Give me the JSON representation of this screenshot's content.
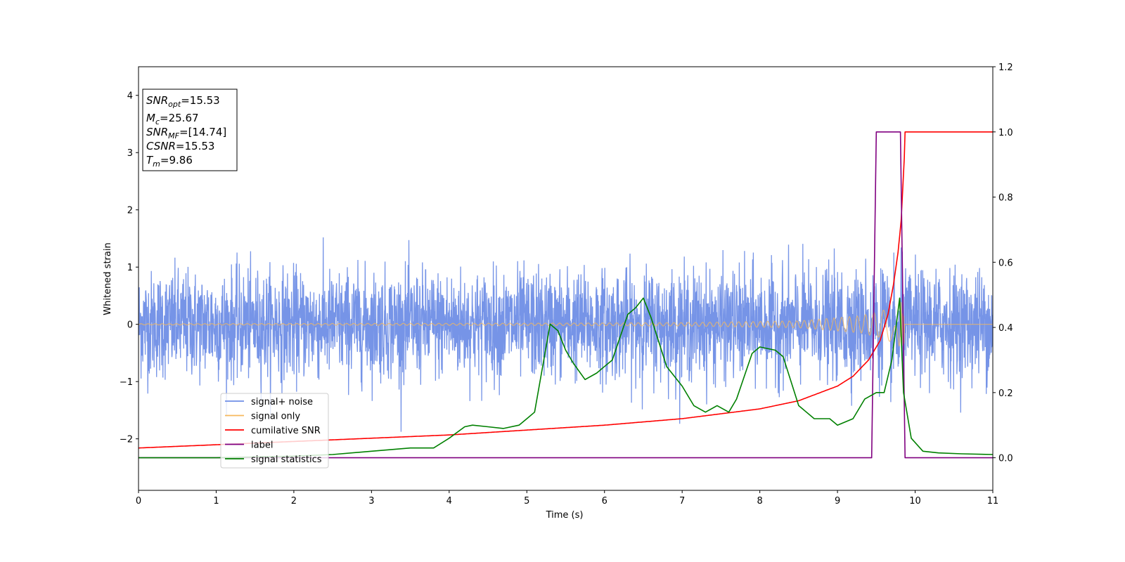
{
  "chart_data": {
    "type": "line",
    "xlabel": "Time (s)",
    "ylabel": "Whitened strain",
    "xlim": [
      0,
      11
    ],
    "ylim": [
      -2.9,
      4.5
    ],
    "y2lim": [
      -0.1,
      1.2
    ],
    "xticks": [
      "0",
      "1",
      "2",
      "3",
      "4",
      "5",
      "6",
      "7",
      "8",
      "9",
      "10",
      "11"
    ],
    "yticks": [
      "−2",
      "−1",
      "0",
      "1",
      "2",
      "3",
      "4"
    ],
    "y2ticks": [
      "0.0",
      "0.2",
      "0.4",
      "0.6",
      "0.8",
      "1.0",
      "1.2"
    ],
    "legend_position": "lower-left",
    "annotation": {
      "lines": [
        {
          "base": "SNR",
          "sub": "opt",
          "value": "=15.53"
        },
        {
          "base": "M",
          "sub": "c",
          "value": "=25.67"
        },
        {
          "base": "SNR",
          "sub": "MF",
          "value": "=[14.74]"
        },
        {
          "base": "CSNR",
          "sub": "",
          "value": "=15.53"
        },
        {
          "base": "T",
          "sub": "m",
          "value": "=9.86"
        }
      ]
    },
    "series": [
      {
        "name": "signal+ noise",
        "color": "#6f8ee6",
        "axis": "left",
        "description_noise_amplitude": 0.75,
        "x": [
          0,
          11
        ],
        "y": [
          0,
          0
        ]
      },
      {
        "name": "signal only",
        "color": "#f6b85c",
        "axis": "left",
        "chirp_merger_time": 9.86,
        "envelope_x": [
          0,
          5,
          7,
          8.5,
          9.3,
          9.6,
          9.8,
          9.86
        ],
        "envelope_y": [
          0.01,
          0.02,
          0.03,
          0.06,
          0.15,
          0.25,
          0.38,
          0.4
        ]
      },
      {
        "name": "cumilative SNR",
        "color": "#ff0000",
        "axis": "right",
        "x": [
          0,
          1,
          2,
          3,
          4,
          5,
          6,
          7,
          7.5,
          8,
          8.5,
          9,
          9.2,
          9.4,
          9.55,
          9.65,
          9.72,
          9.78,
          9.82,
          9.86,
          9.87,
          11
        ],
        "y": [
          0.03,
          0.04,
          0.05,
          0.06,
          0.07,
          0.085,
          0.1,
          0.12,
          0.135,
          0.15,
          0.175,
          0.22,
          0.25,
          0.3,
          0.36,
          0.44,
          0.53,
          0.63,
          0.73,
          0.92,
          1.0,
          1.0
        ]
      },
      {
        "name": "label",
        "color": "#800080",
        "axis": "right",
        "x": [
          0,
          9.44,
          9.5,
          9.81,
          9.87,
          11
        ],
        "y": [
          0,
          0,
          1,
          1,
          0,
          0
        ]
      },
      {
        "name": "signal statistics",
        "color": "#008000",
        "axis": "right",
        "x": [
          0,
          1,
          2,
          2.5,
          3,
          3.5,
          3.8,
          4.0,
          4.2,
          4.3,
          4.5,
          4.7,
          4.9,
          5.0,
          5.1,
          5.3,
          5.4,
          5.5,
          5.6,
          5.75,
          5.9,
          6.0,
          6.1,
          6.3,
          6.4,
          6.5,
          6.6,
          6.8,
          7.0,
          7.15,
          7.3,
          7.45,
          7.6,
          7.7,
          7.9,
          8.0,
          8.2,
          8.3,
          8.5,
          8.7,
          8.9,
          9.0,
          9.2,
          9.35,
          9.5,
          9.6,
          9.7,
          9.8,
          9.85,
          9.95,
          10.1,
          10.3,
          10.6,
          11
        ],
        "y": [
          0.0,
          0.0,
          0.005,
          0.01,
          0.02,
          0.03,
          0.03,
          0.06,
          0.095,
          0.1,
          0.095,
          0.09,
          0.1,
          0.12,
          0.14,
          0.41,
          0.39,
          0.33,
          0.29,
          0.24,
          0.26,
          0.28,
          0.3,
          0.44,
          0.46,
          0.49,
          0.43,
          0.28,
          0.22,
          0.16,
          0.14,
          0.16,
          0.14,
          0.18,
          0.32,
          0.34,
          0.33,
          0.31,
          0.16,
          0.12,
          0.12,
          0.1,
          0.12,
          0.18,
          0.2,
          0.2,
          0.3,
          0.49,
          0.2,
          0.06,
          0.02,
          0.015,
          0.012,
          0.01
        ]
      }
    ]
  }
}
